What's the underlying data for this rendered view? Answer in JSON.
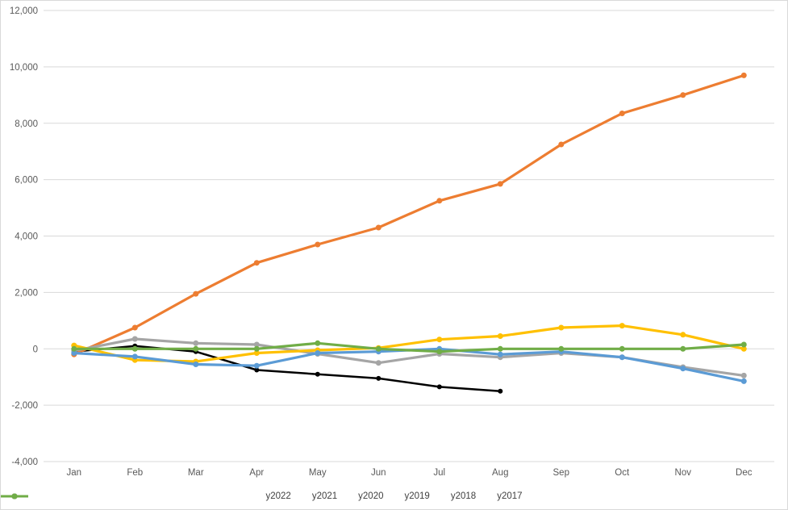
{
  "chart_data": {
    "type": "line",
    "title": "",
    "xlabel": "",
    "ylabel": "",
    "grid": true,
    "legend_position": "bottom",
    "ylim": [
      -4000,
      12000
    ],
    "ytick_step": 2000,
    "yticks": [
      {
        "v": 12000,
        "label": "12,000"
      },
      {
        "v": 10000,
        "label": "10,000"
      },
      {
        "v": 8000,
        "label": "8,000"
      },
      {
        "v": 6000,
        "label": "6,000"
      },
      {
        "v": 4000,
        "label": "4,000"
      },
      {
        "v": 2000,
        "label": "2,000"
      },
      {
        "v": 0,
        "label": "0"
      },
      {
        "v": -2000,
        "label": "-2,000"
      },
      {
        "v": -4000,
        "label": "-4,000"
      }
    ],
    "categories": [
      "Jan",
      "Feb",
      "Mar",
      "Apr",
      "May",
      "Jun",
      "Jul",
      "Aug",
      "Sep",
      "Oct",
      "Nov",
      "Dec"
    ],
    "series": [
      {
        "name": "y2022",
        "color": "#000000",
        "values": [
          -100,
          100,
          -100,
          -750,
          -900,
          -1050,
          -1350,
          -1500,
          null,
          null,
          null,
          null
        ]
      },
      {
        "name": "y2021",
        "color": "#ED7D31",
        "values": [
          -200,
          750,
          1950,
          3050,
          3700,
          4300,
          5250,
          5850,
          7250,
          8350,
          9000,
          9700
        ]
      },
      {
        "name": "y2020",
        "color": "#A5A5A5",
        "values": [
          -70,
          350,
          200,
          150,
          -180,
          -500,
          -180,
          -300,
          -150,
          -300,
          -650,
          -950
        ]
      },
      {
        "name": "y2019",
        "color": "#FFC000",
        "values": [
          120,
          -400,
          -450,
          -150,
          -50,
          30,
          330,
          450,
          750,
          820,
          500,
          0
        ]
      },
      {
        "name": "y2018",
        "color": "#5B9BD5",
        "values": [
          -150,
          -275,
          -550,
          -600,
          -150,
          -100,
          0,
          -200,
          -100,
          -300,
          -700,
          -1150
        ]
      },
      {
        "name": "y2017",
        "color": "#70AD47",
        "values": [
          0,
          0,
          0,
          0,
          200,
          0,
          -100,
          0,
          0,
          0,
          0,
          150
        ]
      }
    ]
  },
  "style_colors": {
    "gridline": "#D9D9D9",
    "chart_border": "#D9D9D9",
    "tick_text": "#595959",
    "legend_text": "#404040",
    "background": "#FFFFFF"
  }
}
